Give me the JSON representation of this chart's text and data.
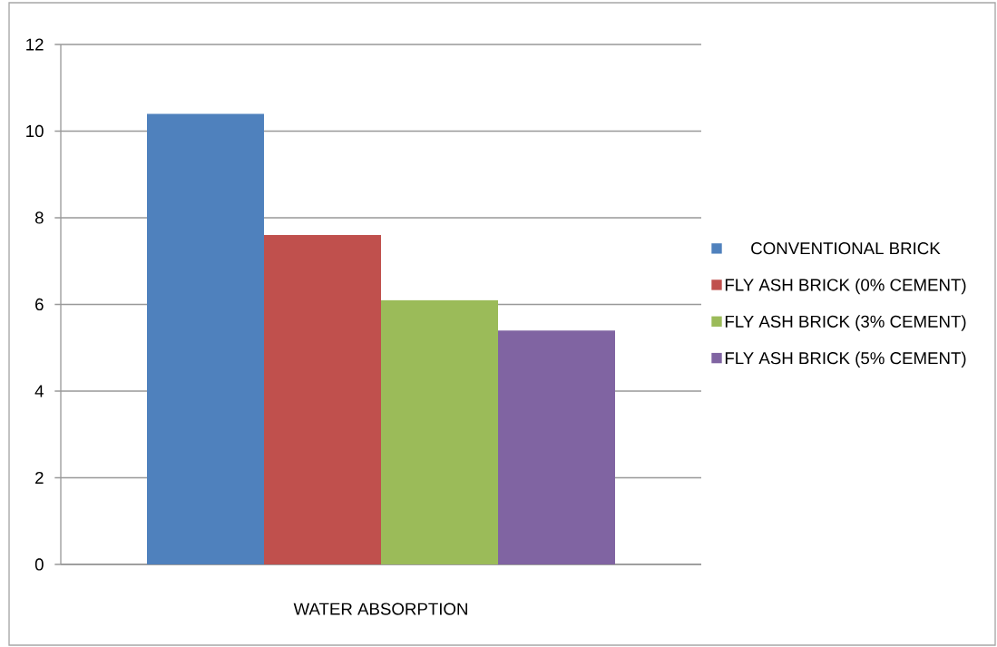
{
  "chart_data": {
    "type": "bar",
    "categories": [
      "WATER ABSORPTION"
    ],
    "series": [
      {
        "name": "CONVENTIONAL BRICK",
        "color": "#4f81bd",
        "values": [
          10.4
        ]
      },
      {
        "name": "FLY ASH BRICK (0% CEMENT)",
        "color": "#c0504d",
        "values": [
          7.6
        ]
      },
      {
        "name": "FLY ASH BRICK (3% CEMENT)",
        "color": "#9bbb59",
        "values": [
          6.1
        ]
      },
      {
        "name": "FLY ASH BRICK (5% CEMENT)",
        "color": "#8064a2",
        "values": [
          5.4
        ]
      }
    ],
    "ylim": [
      0,
      12
    ],
    "yticks": [
      0,
      2,
      4,
      6,
      8,
      10,
      12
    ],
    "grid": "y",
    "legend": "right"
  }
}
